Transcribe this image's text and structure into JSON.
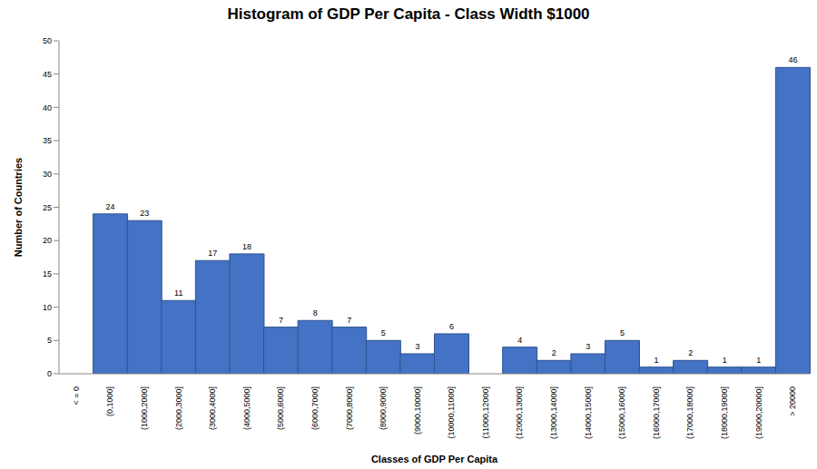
{
  "chart_data": {
    "type": "bar",
    "title": "Histogram of GDP Per Capita - Class Width $1000",
    "x_label": "Classes of GDP Per Capita",
    "y_label": "Number of Countries",
    "categories": [
      "< = 0",
      "(0,1000]",
      "(1000,2000]",
      "(2000,3000]",
      "(3000,4000]",
      "(4000,5000]",
      "(5000,6000]",
      "(6000,7000]",
      "(7000,8000]",
      "(8000,9000]",
      "(9000,10000]",
      "(10000,11000]",
      "(11000,12000]",
      "(12000,13000]",
      "(13000,14000]",
      "(14000,15000]",
      "(15000,16000]",
      "(16000,17000]",
      "(17000,18000]",
      "(18000,19000]",
      "(19000,20000]",
      "> 20000"
    ],
    "values": [
      0,
      24,
      23,
      11,
      17,
      18,
      7,
      8,
      7,
      5,
      3,
      6,
      0,
      4,
      2,
      3,
      5,
      1,
      2,
      1,
      1,
      46
    ],
    "color": "#4472c4",
    "ylim": [
      0,
      50
    ],
    "yticks": [
      0,
      5,
      10,
      15,
      20,
      25,
      30,
      35,
      40,
      45,
      50
    ],
    "grid": false,
    "data_labels": true
  }
}
